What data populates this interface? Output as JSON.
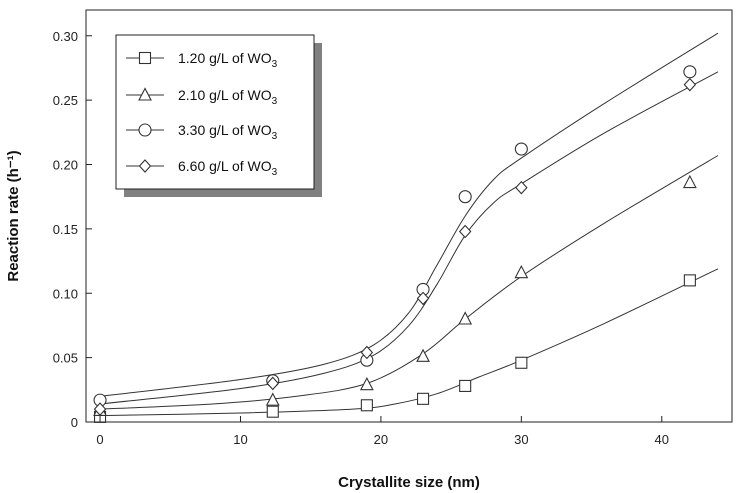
{
  "chart_data": {
    "type": "scatter",
    "xlabel": "Crystallite size (nm)",
    "ylabel": "Reaction rate (h⁻¹)",
    "xlim": [
      -1,
      45
    ],
    "ylim": [
      0,
      0.32
    ],
    "x_ticks": [
      0,
      10,
      20,
      30,
      40
    ],
    "x_tick_labels": [
      "0",
      "10",
      "20",
      "30",
      "40"
    ],
    "y_ticks": [
      0,
      0.05,
      0.1,
      0.15,
      0.2,
      0.25,
      0.3
    ],
    "y_tick_labels": [
      "0",
      "0.05",
      "0.10",
      "0.15",
      "0.20",
      "0.25",
      "0.30"
    ],
    "grid": false,
    "legend_position": "top-left",
    "series": [
      {
        "name": "1.20 g/L of WO3",
        "legend_main": "1.20 g/L of WO",
        "legend_sub": "3",
        "marker": "square",
        "x": [
          0,
          12.3,
          19,
          23,
          26,
          30,
          42
        ],
        "y": [
          0.004,
          0.008,
          0.013,
          0.018,
          0.028,
          0.046,
          0.11
        ],
        "fit": [
          [
            0,
            0.005
          ],
          [
            10,
            0.007
          ],
          [
            18,
            0.01
          ],
          [
            21,
            0.014
          ],
          [
            24,
            0.022
          ],
          [
            27,
            0.035
          ],
          [
            30,
            0.048
          ],
          [
            36,
            0.077
          ],
          [
            44,
            0.119
          ]
        ]
      },
      {
        "name": "2.10 g/L of WO3",
        "legend_main": "2.10 g/L of WO",
        "legend_sub": "3",
        "marker": "triangle",
        "x": [
          0,
          12.3,
          19,
          23,
          26,
          30,
          42
        ],
        "y": [
          0.009,
          0.017,
          0.029,
          0.051,
          0.08,
          0.116,
          0.186
        ],
        "fit": [
          [
            0,
            0.01
          ],
          [
            8,
            0.014
          ],
          [
            14,
            0.02
          ],
          [
            19,
            0.03
          ],
          [
            23,
            0.053
          ],
          [
            26,
            0.08
          ],
          [
            30,
            0.113
          ],
          [
            36,
            0.155
          ],
          [
            44,
            0.207
          ]
        ]
      },
      {
        "name": "3.30 g/L of WO3",
        "legend_main": "3.30 g/L of WO",
        "legend_sub": "3",
        "marker": "circle",
        "x": [
          0,
          12.3,
          19,
          23,
          26,
          30,
          42
        ],
        "y": [
          0.017,
          0.032,
          0.048,
          0.103,
          0.175,
          0.212,
          0.272
        ],
        "fit": [
          [
            0,
            0.02
          ],
          [
            10,
            0.033
          ],
          [
            16,
            0.045
          ],
          [
            19.5,
            0.06
          ],
          [
            22,
            0.085
          ],
          [
            24,
            0.122
          ],
          [
            26,
            0.16
          ],
          [
            28,
            0.188
          ],
          [
            30,
            0.205
          ],
          [
            36,
            0.248
          ],
          [
            44,
            0.302
          ]
        ]
      },
      {
        "name": "6.60 g/L of WO3",
        "legend_main": "6.60 g/L of WO",
        "legend_sub": "3",
        "marker": "diamond",
        "x": [
          0,
          12.3,
          19,
          23,
          26,
          30,
          42
        ],
        "y": [
          0.01,
          0.03,
          0.054,
          0.096,
          0.148,
          0.182,
          0.262
        ],
        "fit": [
          [
            0,
            0.014
          ],
          [
            10,
            0.026
          ],
          [
            16,
            0.038
          ],
          [
            19.5,
            0.052
          ],
          [
            22,
            0.075
          ],
          [
            24,
            0.107
          ],
          [
            26,
            0.145
          ],
          [
            28,
            0.17
          ],
          [
            30,
            0.185
          ],
          [
            36,
            0.225
          ],
          [
            44,
            0.272
          ]
        ]
      }
    ]
  }
}
